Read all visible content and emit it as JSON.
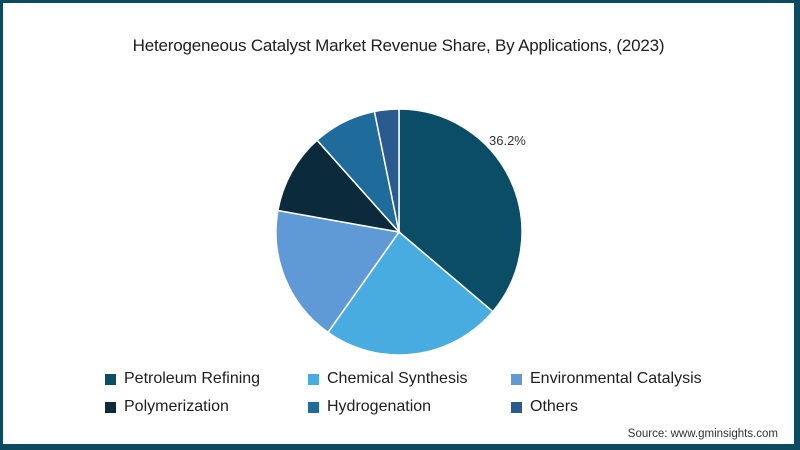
{
  "chart_data": {
    "type": "pie",
    "title": "Heterogeneous Catalyst Market Revenue Share, By Applications, (2023)",
    "categories": [
      "Petroleum Refining",
      "Chemical Synthesis",
      "Environmental Catalysis",
      "Polymerization",
      "Hydrogenation",
      "Others"
    ],
    "values": [
      36.2,
      23.6,
      18.0,
      10.6,
      8.4,
      3.2
    ],
    "colors": [
      "#0b4d66",
      "#48ace0",
      "#5f9ad6",
      "#0b2a3c",
      "#1f6b9b",
      "#2a5a8e"
    ],
    "annotations": [
      {
        "category": "Petroleum Refining",
        "text": "36.2%"
      }
    ],
    "start_angle_deg": 0,
    "direction": "clockwise",
    "legend_position": "bottom",
    "source": "Source: www.gminsights.com"
  },
  "title": "Heterogeneous Catalyst Market Revenue Share, By Applications, (2023)",
  "label_36": "36.2%",
  "legend": [
    {
      "label": "Petroleum Refining",
      "color": "#0b4d66"
    },
    {
      "label": "Chemical Synthesis",
      "color": "#48ace0"
    },
    {
      "label": "Environmental Catalysis",
      "color": "#5f9ad6"
    },
    {
      "label": "Polymerization",
      "color": "#0b2a3c"
    },
    {
      "label": "Hydrogenation",
      "color": "#1f6b9b"
    },
    {
      "label": "Others",
      "color": "#2a5a8e"
    }
  ],
  "source": "Source: www.gminsights.com"
}
